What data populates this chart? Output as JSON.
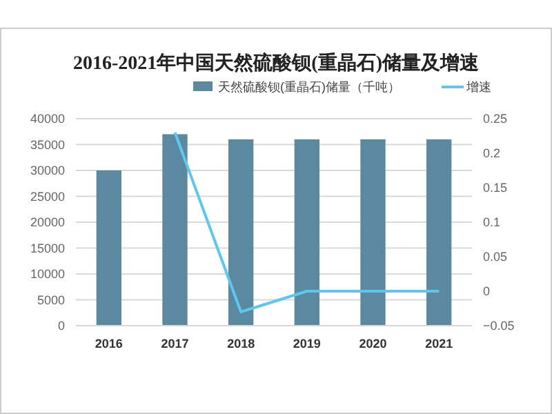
{
  "chart_data": {
    "type": "bar",
    "title": "2016-2021年中国天然硫酸钡(重晶石)储量及增速",
    "categories": [
      "2016",
      "2017",
      "2018",
      "2019",
      "2020",
      "2021"
    ],
    "series": [
      {
        "name": "天然硫酸钡(重晶石)储量（千吨）",
        "color": "#5b8aa0",
        "values": [
          30000,
          37000,
          36000,
          36000,
          36000,
          36000
        ]
      },
      {
        "name": "增速",
        "type": "line",
        "axis": "y2",
        "color": "#5bc8f0",
        "values": [
          null,
          0.23,
          -0.03,
          0,
          0,
          0
        ]
      }
    ],
    "ylim": [
      0,
      40000
    ],
    "yticks": [
      0,
      5000,
      10000,
      15000,
      20000,
      25000,
      30000,
      35000,
      40000
    ],
    "y2lim": [
      -0.05,
      0.25
    ],
    "y2ticks": [
      -0.05,
      0,
      0.05,
      0.1,
      0.15,
      0.2,
      0.25
    ],
    "grid": "y",
    "legend": "top",
    "marker": "none",
    "line_style": "solid"
  }
}
